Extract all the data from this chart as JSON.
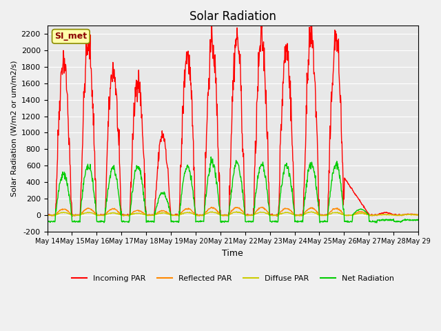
{
  "title": "Solar Radiation",
  "ylabel": "Solar Radiation (W/m2 or um/m2/s)",
  "xlabel": "Time",
  "ylim": [
    -200,
    2300
  ],
  "yticks": [
    -200,
    0,
    200,
    400,
    600,
    800,
    1000,
    1200,
    1400,
    1600,
    1800,
    2000,
    2200
  ],
  "label_text": "SI_met",
  "bg_color": "#e8e8e8",
  "fig_bg_color": "#f0f0f0",
  "series": {
    "incoming_par": {
      "color": "#ff0000",
      "label": "Incoming PAR"
    },
    "reflected_par": {
      "color": "#ff8800",
      "label": "Reflected PAR"
    },
    "diffuse_par": {
      "color": "#cccc00",
      "label": "Diffuse PAR"
    },
    "net_radiation": {
      "color": "#00cc00",
      "label": "Net Radiation"
    }
  },
  "xtick_labels": [
    "May 14",
    "May 15",
    "May 16",
    "May 17",
    "May 18",
    "May 19",
    "May 20",
    "May 21",
    "May 22",
    "May 23",
    "May 24",
    "May 25",
    "May 26",
    "May 27",
    "May 28",
    "May 29"
  ],
  "n_days": 15,
  "pts_per_day": 72,
  "night_pts": 24,
  "day_pts": 48,
  "inc_peaks": [
    1900,
    2100,
    1780,
    1650,
    980,
    1950,
    2100,
    2150,
    2130,
    2020,
    2150,
    2140,
    450,
    30,
    10
  ],
  "ref_peaks": [
    70,
    80,
    75,
    55,
    50,
    75,
    90,
    90,
    90,
    80,
    85,
    80,
    40,
    5,
    5
  ],
  "dif_peaks": [
    30,
    30,
    25,
    20,
    25,
    30,
    35,
    35,
    35,
    30,
    35,
    30,
    20,
    3,
    3
  ],
  "net_peaks": [
    500,
    610,
    560,
    590,
    270,
    590,
    640,
    640,
    620,
    600,
    630,
    620,
    70,
    -60,
    -60
  ]
}
